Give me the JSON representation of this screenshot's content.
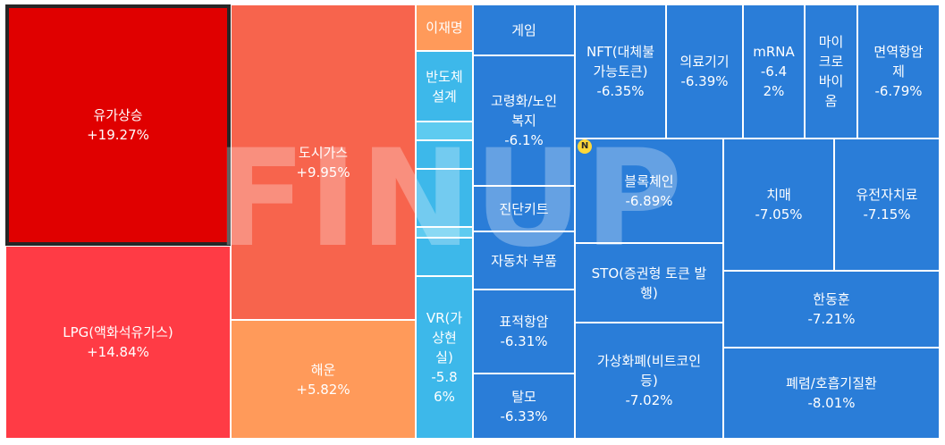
{
  "watermark": "FINUP",
  "badge": "N",
  "colors": {
    "up_strong": "#e00000",
    "up": "#ff3b45",
    "up_mid": "#f7644d",
    "up_light": "#ff9a5a",
    "neutral": "#3db8ea",
    "neutral_light": "#5ecbf0",
    "down": "#2a7dd8",
    "down_light": "#3a8ee0"
  },
  "tiles": [
    {
      "id": "oil-up",
      "name": "유가상승",
      "pct": "+19.27%"
    },
    {
      "id": "lpg",
      "name": "LPG(액화석유가스)",
      "pct": "+14.84%"
    },
    {
      "id": "city-gas",
      "name": "도시가스",
      "pct": "+9.95%"
    },
    {
      "id": "shipping",
      "name": "해운",
      "pct": "+5.82%"
    },
    {
      "id": "lee-jaemyung",
      "name": "이재명",
      "pct": ""
    },
    {
      "id": "semiconductor-design",
      "name": "반도체\n설계",
      "pct": ""
    },
    {
      "id": "blank1",
      "name": "",
      "pct": ""
    },
    {
      "id": "blank2",
      "name": "",
      "pct": ""
    },
    {
      "id": "blank3",
      "name": "",
      "pct": ""
    },
    {
      "id": "blank4",
      "name": "",
      "pct": ""
    },
    {
      "id": "blank5",
      "name": "",
      "pct": ""
    },
    {
      "id": "vr",
      "name": "VR(가\n상현\n실)",
      "pct": "-5.8\n6%"
    },
    {
      "id": "game",
      "name": "게임",
      "pct": ""
    },
    {
      "id": "elderly-welfare",
      "name": "고령화/노인\n복지",
      "pct": "-6.1%"
    },
    {
      "id": "diagnostic-kit",
      "name": "진단키트",
      "pct": ""
    },
    {
      "id": "auto-parts",
      "name": "자동차 부품",
      "pct": ""
    },
    {
      "id": "target-anticancer",
      "name": "표적항암",
      "pct": "-6.31%"
    },
    {
      "id": "hair-loss",
      "name": "탈모",
      "pct": "-6.33%"
    },
    {
      "id": "nft",
      "name": "NFT(대체불\n가능토큰)",
      "pct": "-6.35%"
    },
    {
      "id": "medical-device",
      "name": "의료기기",
      "pct": "-6.39%"
    },
    {
      "id": "mrna",
      "name": "mRNA",
      "pct": "-6.4\n2%"
    },
    {
      "id": "microbiome",
      "name": "마이\n크로\n바이\n옴",
      "pct": ""
    },
    {
      "id": "immunotherapy",
      "name": "면역항암\n제",
      "pct": "-6.79%"
    },
    {
      "id": "blockchain",
      "name": "블록체인",
      "pct": "-6.89%"
    },
    {
      "id": "dementia",
      "name": "치매",
      "pct": "-7.05%"
    },
    {
      "id": "gene-therapy",
      "name": "유전자치료",
      "pct": "-7.15%"
    },
    {
      "id": "sto",
      "name": "STO(증권형 토큰 발\n행)",
      "pct": ""
    },
    {
      "id": "hanhdonghun",
      "name": "한동훈",
      "pct": "-7.21%"
    },
    {
      "id": "crypto",
      "name": "가상화폐(비트코인\n등)",
      "pct": "-7.02%"
    },
    {
      "id": "lung-disease",
      "name": "폐렴/호흡기질환",
      "pct": "-8.01%"
    }
  ]
}
